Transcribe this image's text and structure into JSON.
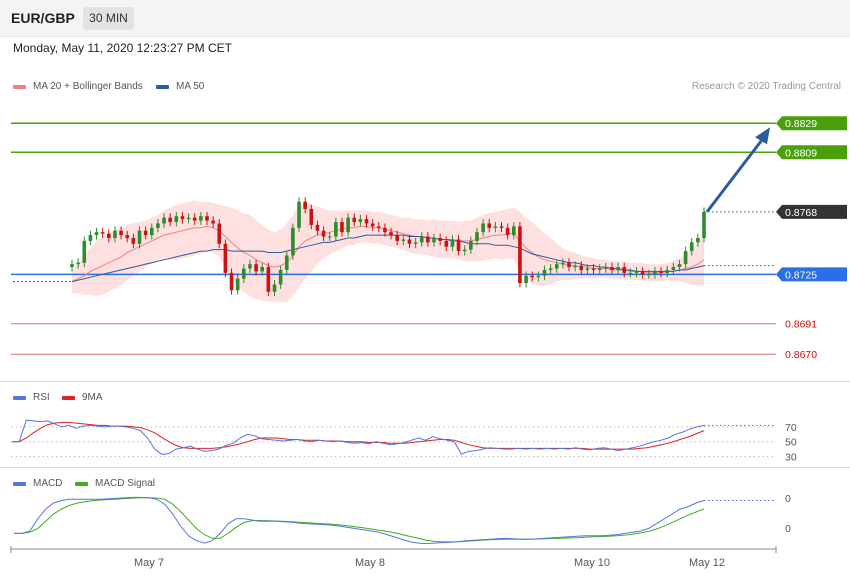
{
  "header": {
    "symbol": "EUR/GBP",
    "timeframe": "30 MIN",
    "datetime": "Monday, May 11, 2020 12:23:27 PM CET"
  },
  "legend": {
    "main": [
      {
        "label": "MA 20 + Bollinger Bands",
        "color": "#f08080"
      },
      {
        "label": "MA 50",
        "color": "#2e5a9e"
      }
    ],
    "rsi": [
      {
        "label": "RSI",
        "color": "#5577dd"
      },
      {
        "label": "9MA",
        "color": "#dd2222"
      }
    ],
    "macd": [
      {
        "label": "MACD",
        "color": "#5577dd"
      },
      {
        "label": "MACD Signal",
        "color": "#44aa22"
      }
    ]
  },
  "credit": "Research © 2020 Trading Central",
  "colors": {
    "up": "#2e8b2e",
    "down": "#cc1111",
    "target": "#4aa00a",
    "pivot": "#2a6ee8",
    "support": "#e07070",
    "current": "#333333",
    "arrow": "#2e5a9e",
    "band": "#ffe0e0"
  },
  "chart_data": {
    "type": "candlestick",
    "price_axis": {
      "min": 0.8655,
      "max": 0.8845
    },
    "x_labels": [
      "May 7",
      "May 8",
      "May 10",
      "May 12"
    ],
    "levels": [
      {
        "value": 0.8829,
        "label": "0.8829",
        "kind": "target"
      },
      {
        "value": 0.8809,
        "label": "0.8809",
        "kind": "target"
      },
      {
        "value": 0.8768,
        "label": "0.8768",
        "kind": "current"
      },
      {
        "value": 0.8725,
        "label": "0.8725",
        "kind": "pivot"
      },
      {
        "value": 0.8691,
        "label": "0.8691",
        "kind": "support"
      },
      {
        "value": 0.867,
        "label": "0.8670",
        "kind": "support"
      }
    ],
    "arrow": {
      "from": 0.8768,
      "to": 0.8829
    },
    "closes": [
      0.8732,
      0.8733,
      0.8748,
      0.8752,
      0.8754,
      0.8753,
      0.875,
      0.8755,
      0.8752,
      0.875,
      0.8746,
      0.8755,
      0.8752,
      0.8757,
      0.876,
      0.8764,
      0.8761,
      0.8765,
      0.8763,
      0.8764,
      0.8762,
      0.8765,
      0.8762,
      0.876,
      0.8746,
      0.8726,
      0.8714,
      0.8722,
      0.8729,
      0.8732,
      0.8727,
      0.873,
      0.8713,
      0.8718,
      0.8728,
      0.8738,
      0.8757,
      0.8775,
      0.877,
      0.8759,
      0.8755,
      0.8751,
      0.8751,
      0.8761,
      0.8754,
      0.8764,
      0.8761,
      0.8763,
      0.876,
      0.8758,
      0.8757,
      0.8754,
      0.8752,
      0.8748,
      0.8749,
      0.8746,
      0.8747,
      0.8751,
      0.8747,
      0.875,
      0.8748,
      0.8744,
      0.8749,
      0.8741,
      0.8742,
      0.8748,
      0.8754,
      0.876,
      0.8757,
      0.8758,
      0.8757,
      0.8752,
      0.8758,
      0.8719,
      0.8724,
      0.8723,
      0.8724,
      0.8728,
      0.8729,
      0.8732,
      0.8733,
      0.873,
      0.8731,
      0.8728,
      0.8729,
      0.8728,
      0.8729,
      0.873,
      0.8728,
      0.873,
      0.8726,
      0.8726,
      0.8727,
      0.8725,
      0.8725,
      0.8727,
      0.8726,
      0.8728,
      0.873,
      0.8732,
      0.8741,
      0.8747,
      0.875,
      0.8768
    ],
    "ma20": [
      0.872,
      0.8722,
      0.8724,
      0.8727,
      0.8729,
      0.8731,
      0.8733,
      0.8735,
      0.8737,
      0.874,
      0.8742,
      0.8744,
      0.8746,
      0.8748,
      0.875,
      0.8752,
      0.8753,
      0.8754,
      0.8755,
      0.8756,
      0.8757,
      0.8757,
      0.8758,
      0.8757,
      0.8755,
      0.8751,
      0.8747,
      0.8743,
      0.874,
      0.8738,
      0.8735,
      0.8733,
      0.8731,
      0.873,
      0.8731,
      0.8733,
      0.8738,
      0.8744,
      0.8748,
      0.875,
      0.8752,
      0.8753,
      0.8754,
      0.8755,
      0.8756,
      0.8757,
      0.8757,
      0.8758,
      0.8758,
      0.8757,
      0.8757,
      0.8756,
      0.8755,
      0.8754,
      0.8753,
      0.8752,
      0.8751,
      0.8751,
      0.875,
      0.875,
      0.8749,
      0.8749,
      0.8749,
      0.8748,
      0.8748,
      0.8748,
      0.8749,
      0.875,
      0.8751,
      0.8752,
      0.8752,
      0.8753,
      0.8753,
      0.8748,
      0.8743,
      0.874,
      0.8737,
      0.8735,
      0.8734,
      0.8733,
      0.8732,
      0.8731,
      0.8731,
      0.873,
      0.873,
      0.8729,
      0.8729,
      0.8729,
      0.8728,
      0.8728,
      0.8728,
      0.8727,
      0.8727,
      0.8727,
      0.8726,
      0.8726,
      0.8726,
      0.8727,
      0.8727,
      0.8728,
      0.8729,
      0.873,
      0.8732,
      0.8735
    ],
    "ma50": [
      0.872,
      0.8721,
      0.8722,
      0.8723,
      0.8724,
      0.8725,
      0.8726,
      0.8727,
      0.8728,
      0.8729,
      0.873,
      0.8731,
      0.8732,
      0.8733,
      0.8734,
      0.8735,
      0.8736,
      0.8737,
      0.8738,
      0.8739,
      0.874,
      0.8741,
      0.8741,
      0.8742,
      0.8742,
      0.8742,
      0.8741,
      0.8741,
      0.8741,
      0.8741,
      0.8741,
      0.8741,
      0.874,
      0.874,
      0.874,
      0.8741,
      0.8742,
      0.8743,
      0.8744,
      0.8745,
      0.8746,
      0.8747,
      0.8747,
      0.8748,
      0.8749,
      0.875,
      0.875,
      0.8751,
      0.8752,
      0.8752,
      0.8752,
      0.8752,
      0.8752,
      0.8752,
      0.8752,
      0.8751,
      0.8751,
      0.8751,
      0.875,
      0.875,
      0.8749,
      0.8749,
      0.8748,
      0.8748,
      0.8747,
      0.8746,
      0.8746,
      0.8746,
      0.8746,
      0.8745,
      0.8745,
      0.8745,
      0.8744,
      0.8743,
      0.8741,
      0.8739,
      0.8738,
      0.8737,
      0.8736,
      0.8735,
      0.8734,
      0.8733,
      0.8733,
      0.8732,
      0.8731,
      0.8731,
      0.873,
      0.873,
      0.8729,
      0.8729,
      0.8728,
      0.8728,
      0.8727,
      0.8727,
      0.8727,
      0.8727,
      0.8727,
      0.8727,
      0.8727,
      0.8728,
      0.8728,
      0.8729,
      0.873,
      0.8731
    ],
    "band_width": [
      0.0008,
      0.001,
      0.0013,
      0.0016,
      0.0019,
      0.002,
      0.002,
      0.002,
      0.002,
      0.0019,
      0.0018,
      0.0017,
      0.0016,
      0.0016,
      0.0016,
      0.0017,
      0.0018,
      0.0019,
      0.0019,
      0.0019,
      0.0019,
      0.0018,
      0.0017,
      0.0017,
      0.0018,
      0.0021,
      0.0024,
      0.0026,
      0.0027,
      0.0028,
      0.0027,
      0.0026,
      0.0025,
      0.0024,
      0.0025,
      0.0027,
      0.0028,
      0.0028,
      0.0026,
      0.0023,
      0.002,
      0.0017,
      0.0015,
      0.0014,
      0.0013,
      0.0012,
      0.0012,
      0.0011,
      0.0011,
      0.0011,
      0.0011,
      0.0011,
      0.0011,
      0.0011,
      0.0011,
      0.0012,
      0.0012,
      0.0012,
      0.0012,
      0.0013,
      0.0013,
      0.0013,
      0.0013,
      0.0013,
      0.0014,
      0.0014,
      0.0015,
      0.0016,
      0.0016,
      0.0016,
      0.0017,
      0.0017,
      0.0018,
      0.002,
      0.0021,
      0.0021,
      0.002,
      0.0018,
      0.0016,
      0.0013,
      0.0011,
      0.001,
      0.0009,
      0.0008,
      0.0007,
      0.0007,
      0.0006,
      0.0006,
      0.0006,
      0.0006,
      0.0006,
      0.0006,
      0.0006,
      0.0006,
      0.0006,
      0.0006,
      0.0006,
      0.0006,
      0.0007,
      0.0008,
      0.001,
      0.0012,
      0.0015,
      0.0018
    ],
    "rsi": {
      "levels": [
        70,
        50,
        30
      ],
      "values": [
        50,
        50,
        79,
        78,
        77,
        78,
        74,
        70,
        72,
        68,
        71,
        72,
        71,
        70,
        71,
        71,
        70,
        68,
        65,
        55,
        40,
        33,
        34,
        40,
        42,
        44,
        40,
        37,
        38,
        40,
        45,
        48,
        55,
        60,
        58,
        54,
        53,
        52,
        51,
        52,
        53,
        51,
        50,
        52,
        51,
        50,
        51,
        49,
        48,
        49,
        47,
        50,
        48,
        46,
        47,
        49,
        52,
        55,
        52,
        57,
        54,
        52,
        50,
        33,
        37,
        38,
        40,
        42,
        41,
        40,
        40,
        41,
        40,
        41,
        40,
        41,
        40,
        41,
        40,
        42,
        40,
        39,
        41,
        42,
        40,
        38,
        40,
        42,
        44,
        47,
        50,
        52,
        55,
        60,
        63,
        67,
        70,
        72
      ],
      "signal": [
        50,
        50,
        55,
        62,
        68,
        73,
        75,
        76,
        76,
        75,
        74,
        73,
        72,
        72,
        71,
        71,
        71,
        70,
        69,
        66,
        62,
        56,
        50,
        45,
        42,
        41,
        41,
        41,
        41,
        42,
        43,
        45,
        47,
        50,
        53,
        55,
        55,
        55,
        54,
        53,
        53,
        52,
        52,
        52,
        51,
        51,
        51,
        50,
        50,
        50,
        49,
        49,
        49,
        48,
        48,
        48,
        49,
        50,
        51,
        52,
        53,
        53,
        52,
        49,
        46,
        44,
        42,
        41,
        41,
        41,
        41,
        41,
        41,
        41,
        41,
        41,
        41,
        41,
        41,
        41,
        41,
        40,
        40,
        40,
        40,
        40,
        40,
        40,
        41,
        42,
        44,
        46,
        48,
        51,
        54,
        57,
        61,
        65
      ]
    },
    "macd": {
      "labels": [
        "0",
        "0"
      ],
      "values": [
        0.0,
        0.0,
        0.1,
        0.6,
        1.0,
        1.25,
        1.35,
        1.4,
        1.4,
        1.4,
        1.4,
        1.4,
        1.42,
        1.44,
        1.46,
        1.48,
        1.48,
        1.46,
        1.4,
        1.2,
        0.8,
        0.3,
        -0.1,
        -0.3,
        -0.4,
        -0.3,
        0.0,
        0.4,
        0.6,
        0.6,
        0.55,
        0.5,
        0.5,
        0.5,
        0.48,
        0.46,
        0.42,
        0.4,
        0.38,
        0.36,
        0.34,
        0.3,
        0.25,
        0.2,
        0.15,
        0.1,
        0.05,
        -0.05,
        -0.15,
        -0.25,
        -0.35,
        -0.4,
        -0.42,
        -0.4,
        -0.38,
        -0.36,
        -0.34,
        -0.3,
        -0.28,
        -0.26,
        -0.24,
        -0.22,
        -0.2,
        -0.22,
        -0.24,
        -0.24,
        -0.22,
        -0.2,
        -0.18,
        -0.16,
        -0.14,
        -0.12,
        -0.1,
        -0.1,
        -0.1,
        -0.08,
        -0.05,
        0.0,
        0.05,
        0.1,
        0.2,
        0.4,
        0.6,
        0.8,
        1.0,
        1.1,
        1.25,
        1.35
      ],
      "signal": [
        0.0,
        0.0,
        0.05,
        0.2,
        0.5,
        0.8,
        1.0,
        1.15,
        1.25,
        1.3,
        1.35,
        1.37,
        1.39,
        1.41,
        1.43,
        1.45,
        1.46,
        1.46,
        1.45,
        1.4,
        1.2,
        0.9,
        0.55,
        0.2,
        -0.05,
        -0.2,
        -0.2,
        0.0,
        0.25,
        0.45,
        0.52,
        0.53,
        0.52,
        0.51,
        0.5,
        0.48,
        0.46,
        0.44,
        0.42,
        0.4,
        0.38,
        0.35,
        0.31,
        0.27,
        0.23,
        0.18,
        0.13,
        0.08,
        0.02,
        -0.05,
        -0.13,
        -0.2,
        -0.28,
        -0.33,
        -0.35,
        -0.35,
        -0.34,
        -0.32,
        -0.3,
        -0.28,
        -0.26,
        -0.25,
        -0.24,
        -0.24,
        -0.24,
        -0.24,
        -0.23,
        -0.22,
        -0.21,
        -0.2,
        -0.19,
        -0.18,
        -0.16,
        -0.14,
        -0.13,
        -0.12,
        -0.1,
        -0.07,
        -0.03,
        0.02,
        0.08,
        0.18,
        0.3,
        0.45,
        0.6,
        0.75,
        0.88,
        1.0
      ]
    }
  }
}
